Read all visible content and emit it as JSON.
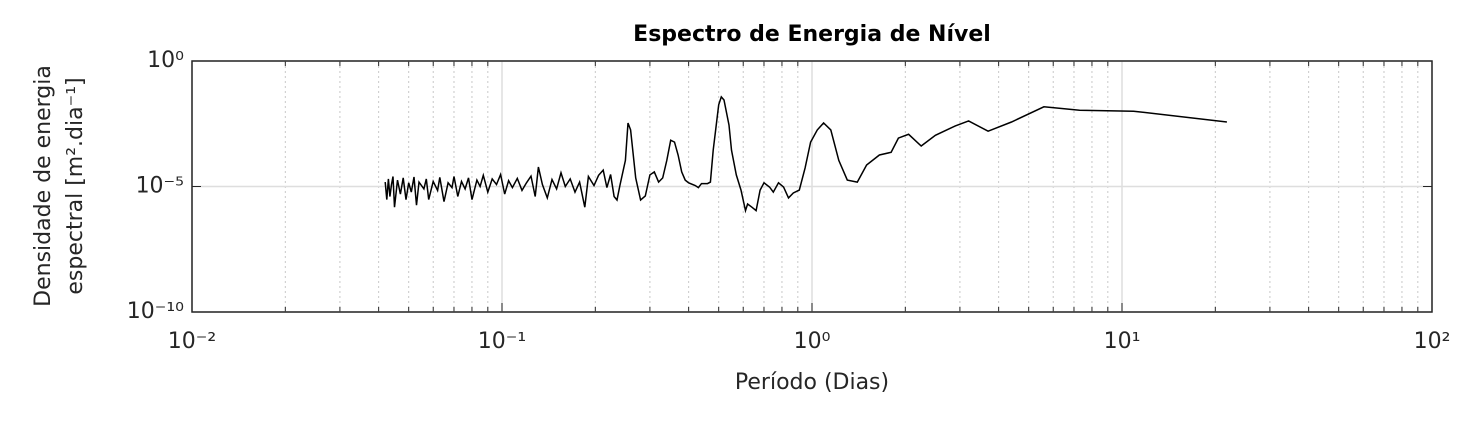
{
  "chart_data": {
    "type": "line",
    "title": "Espectro de Energia de Nível",
    "xlabel": "Período (Dias)",
    "ylabel": [
      "Densidade de energia",
      "espectral [m².dia⁻¹]"
    ],
    "xscale": "log",
    "yscale": "log",
    "grid": true,
    "minor_grid": true,
    "xlim": [
      0.01,
      100
    ],
    "ylim": [
      1e-10,
      1
    ],
    "xticks": [
      {
        "value": 0.01,
        "label": "10⁻²"
      },
      {
        "value": 0.1,
        "label": "10⁻¹"
      },
      {
        "value": 1,
        "label": "10⁰"
      },
      {
        "value": 10,
        "label": "10¹"
      },
      {
        "value": 100,
        "label": "10²"
      }
    ],
    "yticks": [
      {
        "value": 1e-10,
        "label": "10⁻¹⁰"
      },
      {
        "value": 1e-05,
        "label": "10⁻⁵"
      },
      {
        "value": 1,
        "label": "10⁰"
      }
    ],
    "series": [
      {
        "color": "#000000",
        "x": [
          0.042,
          0.0425,
          0.043,
          0.0435,
          0.044,
          0.0445,
          0.045,
          0.046,
          0.047,
          0.048,
          0.049,
          0.05,
          0.051,
          0.052,
          0.053,
          0.054,
          0.056,
          0.057,
          0.058,
          0.06,
          0.062,
          0.063,
          0.065,
          0.067,
          0.069,
          0.07,
          0.072,
          0.074,
          0.076,
          0.078,
          0.08,
          0.083,
          0.085,
          0.087,
          0.09,
          0.093,
          0.096,
          0.099,
          0.102,
          0.105,
          0.108,
          0.112,
          0.116,
          0.12,
          0.124,
          0.128,
          0.131,
          0.135,
          0.14,
          0.145,
          0.15,
          0.155,
          0.16,
          0.166,
          0.172,
          0.178,
          0.185,
          0.19,
          0.198,
          0.205,
          0.212,
          0.218,
          0.224,
          0.23,
          0.235,
          0.24,
          0.25,
          0.255,
          0.26,
          0.27,
          0.28,
          0.29,
          0.3,
          0.31,
          0.32,
          0.33,
          0.34,
          0.35,
          0.36,
          0.37,
          0.38,
          0.39,
          0.4,
          0.42,
          0.43,
          0.44,
          0.46,
          0.47,
          0.48,
          0.5,
          0.51,
          0.52,
          0.54,
          0.55,
          0.57,
          0.59,
          0.61,
          0.62,
          0.64,
          0.66,
          0.68,
          0.7,
          0.73,
          0.75,
          0.78,
          0.81,
          0.84,
          0.87,
          0.91,
          0.95,
          0.99,
          1.04,
          1.09,
          1.15,
          1.22,
          1.3,
          1.4,
          1.5,
          1.65,
          1.8,
          1.9,
          2.05,
          2.25,
          2.5,
          2.9,
          3.2,
          3.7,
          4.4,
          5.6,
          7.3,
          10.9,
          21.8
        ],
        "values": [
          1.5e-05,
          3e-06,
          2e-05,
          4e-06,
          1.2e-05,
          2.5e-05,
          1.5e-06,
          1.8e-05,
          5e-06,
          2.2e-05,
          3e-06,
          1.4e-05,
          6e-06,
          2.4e-05,
          1.8e-06,
          1.5e-05,
          8e-06,
          2e-05,
          3e-06,
          1.6e-05,
          7e-06,
          2.3e-05,
          2.5e-06,
          1.4e-05,
          9e-06,
          2.5e-05,
          4e-06,
          1.6e-05,
          8e-06,
          2.2e-05,
          3e-06,
          1.8e-05,
          1e-05,
          2.8e-05,
          6e-06,
          2e-05,
          1.2e-05,
          3e-05,
          5e-06,
          1.7e-05,
          9e-06,
          2.1e-05,
          7e-06,
          1.4e-05,
          2.6e-05,
          4e-06,
          6e-05,
          1.2e-05,
          3.5e-06,
          1.9e-05,
          8e-06,
          3.5e-05,
          1e-05,
          2e-05,
          6e-06,
          1.5e-05,
          1.5e-06,
          2.5e-05,
          1.1e-05,
          2.8e-05,
          4.5e-05,
          9e-06,
          3e-05,
          4e-06,
          2.9e-06,
          1.1e-05,
          0.00011,
          0.0034,
          0.0018,
          2.2e-05,
          2.9e-06,
          4.2e-06,
          2.9e-05,
          3.8e-05,
          1.5e-05,
          2.2e-05,
          0.00011,
          0.0007,
          0.00059,
          0.00018,
          3.8e-05,
          1.8e-05,
          1.4e-05,
          1.1e-05,
          9e-06,
          1.3e-05,
          1.3e-05,
          1.5e-05,
          0.00028,
          0.018,
          0.037,
          0.028,
          0.0028,
          0.00028,
          2.9e-05,
          7.2e-06,
          1.1e-06,
          2e-06,
          1.5e-06,
          1.1e-06,
          7.2e-06,
          1.4e-05,
          9.5e-06,
          6e-06,
          1.4e-05,
          9.5e-06,
          3.5e-06,
          5.5e-06,
          7.2e-06,
          5.5e-05,
          0.00059,
          0.0018,
          0.0034,
          0.0018,
          0.00011,
          1.8e-05,
          1.5e-05,
          7.2e-05,
          0.00018,
          0.00023,
          0.00085,
          0.0012,
          0.00041,
          0.0011,
          0.0026,
          0.0041,
          0.0016,
          0.0037,
          0.015,
          0.011,
          0.01,
          0.0037
        ]
      }
    ]
  }
}
